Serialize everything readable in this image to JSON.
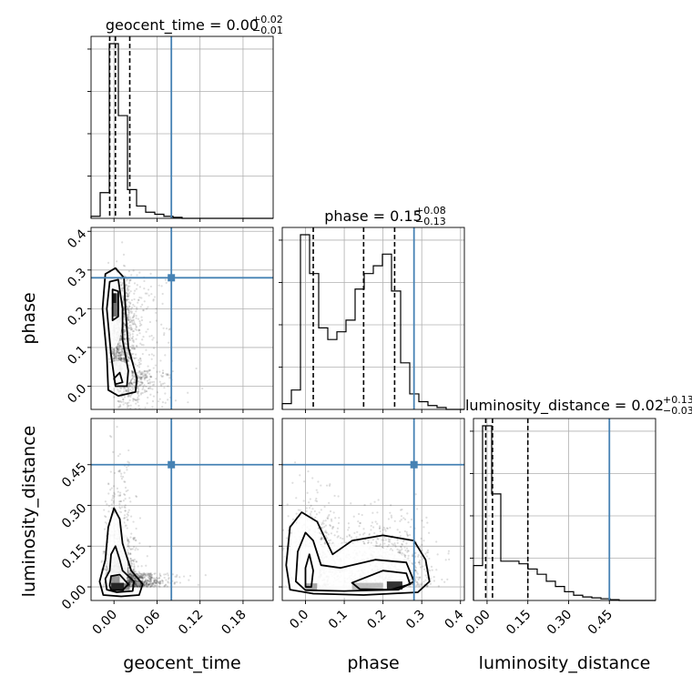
{
  "chart_data": {
    "type": "corner",
    "parameters": [
      "geocent_time",
      "phase",
      "luminosity_distance"
    ],
    "titles": {
      "geocent_time": {
        "name": "geocent_time",
        "value": "0.00",
        "plus": "+0.02",
        "minus": "−0.01"
      },
      "phase": {
        "name": "phase",
        "value": "0.15",
        "plus": "+0.08",
        "minus": "−0.13"
      },
      "luminosity_distance": {
        "name": "luminosity_distance",
        "value": "0.02",
        "plus": "+0.13",
        "minus": "−0.03"
      }
    },
    "axis_labels": {
      "x": [
        "geocent_time",
        "phase",
        "luminosity_distance"
      ],
      "y": [
        "phase",
        "luminosity_distance"
      ]
    },
    "ranges": {
      "geocent_time": [
        -0.032,
        0.222
      ],
      "phase": [
        -0.06,
        0.41
      ],
      "luminosity_distance": [
        -0.05,
        0.62
      ]
    },
    "ticks": {
      "geocent_time": [
        0.0,
        0.06,
        0.12,
        0.18
      ],
      "phase": [
        0.0,
        0.1,
        0.2,
        0.3,
        0.4
      ],
      "luminosity_distance": [
        0.0,
        0.15,
        0.3,
        0.45
      ]
    },
    "tick_labels": {
      "geocent_time": [
        "0.00",
        "0.06",
        "0.12",
        "0.18"
      ],
      "phase_x": [
        "0.0",
        "0.1",
        "0.2",
        "0.3",
        "0.4"
      ],
      "phase_y": [
        "0.0",
        "0.1",
        "0.2",
        "0.3",
        "0.4"
      ],
      "luminosity_distance": [
        "0.00",
        "0.15",
        "0.30",
        "0.45"
      ]
    },
    "injection": {
      "geocent_time": 0.08,
      "phase": 0.28,
      "luminosity_distance": 0.45
    },
    "quantiles": {
      "geocent_time": [
        -0.006,
        0.002,
        0.022
      ],
      "phase": [
        0.02,
        0.15,
        0.23
      ],
      "luminosity_distance": [
        -0.005,
        0.02,
        0.15
      ]
    },
    "histograms": {
      "geocent_time": {
        "edges": [
          -0.032,
          -0.0193,
          -0.0066,
          0.0061,
          0.0188,
          0.0315,
          0.0442,
          0.0569,
          0.0696,
          0.0823,
          0.095,
          0.1077,
          0.1204,
          0.1331,
          0.1458,
          0.1585,
          0.1712,
          0.1839,
          0.1966,
          0.2093,
          0.222
        ],
        "counts": [
          2,
          25,
          170,
          100,
          28,
          12,
          6,
          4,
          2,
          1,
          0,
          0,
          0,
          0,
          0,
          0,
          0,
          0,
          0,
          0
        ]
      },
      "phase": {
        "edges": [
          -0.06,
          -0.0365,
          -0.013,
          0.0105,
          0.034,
          0.0575,
          0.081,
          0.1045,
          0.128,
          0.1515,
          0.175,
          0.1985,
          0.222,
          0.2455,
          0.269,
          0.2925,
          0.316,
          0.3395,
          0.363,
          0.3865,
          0.41
        ],
        "counts": [
          3,
          10,
          90,
          70,
          42,
          36,
          40,
          46,
          62,
          70,
          74,
          80,
          61,
          24,
          8,
          4,
          2,
          1,
          0,
          0
        ]
      },
      "luminosity_distance": {
        "edges": [
          -0.05,
          -0.0165,
          0.017,
          0.0505,
          0.084,
          0.1175,
          0.151,
          0.1845,
          0.218,
          0.2515,
          0.285,
          0.3185,
          0.352,
          0.3855,
          0.419,
          0.4525,
          0.486,
          0.5195,
          0.553,
          0.5865,
          0.62
        ],
        "counts": [
          40,
          200,
          122,
          45,
          45,
          42,
          36,
          30,
          22,
          16,
          10,
          6,
          4,
          3,
          2,
          1,
          0,
          0,
          0,
          0
        ]
      }
    },
    "grid": true,
    "colors": {
      "truth": "#4682b4",
      "contour": "#000000",
      "samples": "#000000",
      "density": "#000000"
    }
  }
}
